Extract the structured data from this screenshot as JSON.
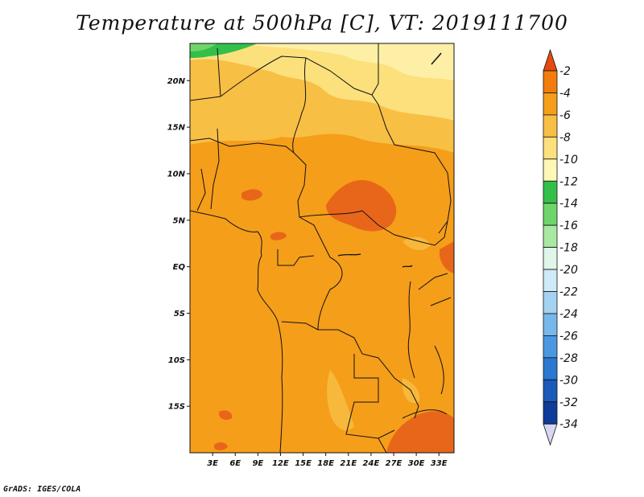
{
  "title": "Temperature at 500hPa [C], VT: 2019111700",
  "credit": "GrADS: IGES/COLA",
  "map": {
    "lon_range": [
      0,
      35
    ],
    "lat_range": [
      -20,
      24
    ],
    "lat_labels": [
      "20N",
      "15N",
      "10N",
      "5N",
      "EQ",
      "5S",
      "10S",
      "15S"
    ],
    "lat_values": [
      20,
      15,
      10,
      5,
      0,
      -5,
      -10,
      -15
    ],
    "lon_labels": [
      "3E",
      "6E",
      "9E",
      "12E",
      "15E",
      "18E",
      "21E",
      "24E",
      "27E",
      "30E",
      "33E"
    ],
    "lon_values": [
      3,
      6,
      9,
      12,
      15,
      18,
      21,
      24,
      27,
      30,
      33
    ]
  },
  "colorbar": {
    "labels": [
      "-2",
      "-4",
      "-6",
      "-8",
      "-10",
      "-12",
      "-14",
      "-16",
      "-18",
      "-20",
      "-22",
      "-24",
      "-26",
      "-28",
      "-30",
      "-32",
      "-34"
    ],
    "colors": [
      "#e54a0e",
      "#f27c0c",
      "#f59e1a",
      "#f8bf45",
      "#fbe07c",
      "#fdf7b8",
      "#33c04a",
      "#6fd56a",
      "#a9e8a2",
      "#dff6e8",
      "#cfeaf8",
      "#a6d2f2",
      "#77b7ec",
      "#4a98e2",
      "#2a78d0",
      "#1a5ab8",
      "#0e3c9a",
      "#06166a",
      "#d7d7f2"
    ]
  }
}
